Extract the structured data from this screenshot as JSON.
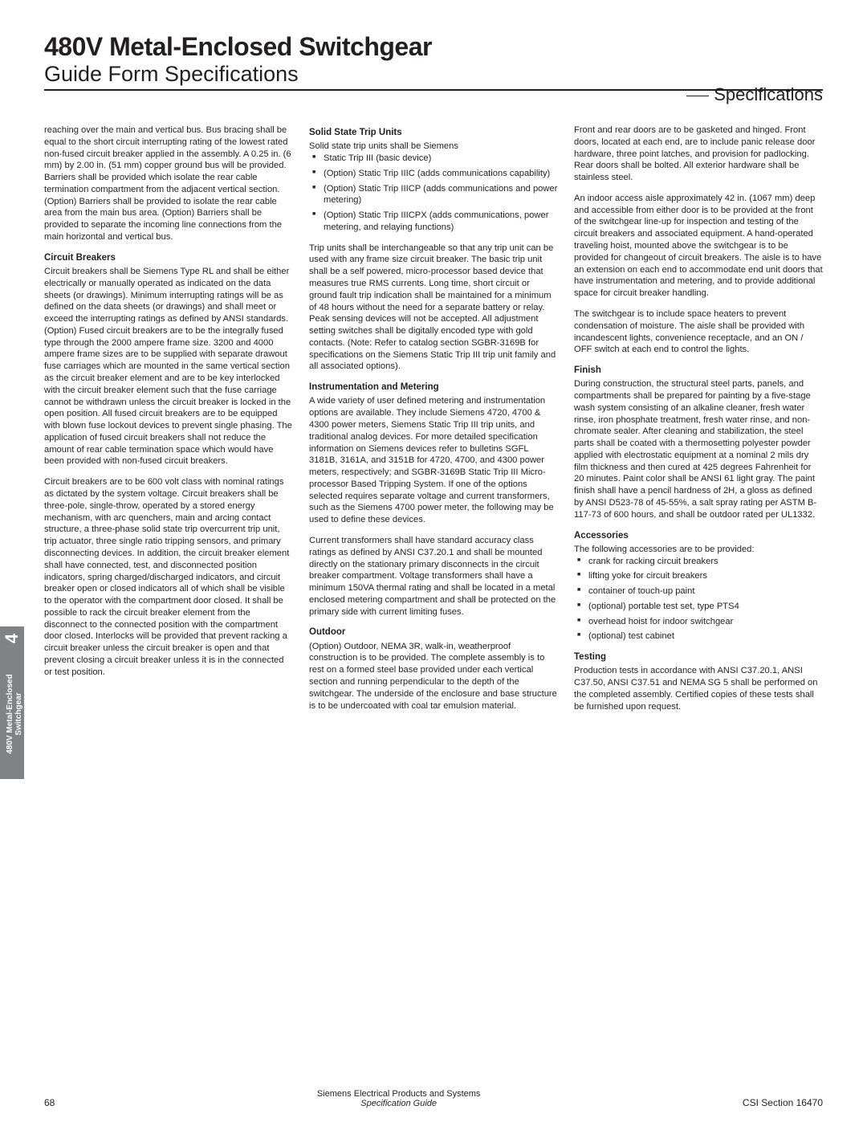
{
  "title": {
    "main": "480V Metal-Enclosed Switchgear",
    "sub": "Guide Form Specifications"
  },
  "sectionLabel": "Specifications",
  "sideTab": {
    "num": "4",
    "line1": "480V Metal-Enclosed",
    "line2": "Switchgear"
  },
  "col1": {
    "p1": "reaching over the main and vertical bus. Bus bracing shall be equal to the short circuit interrupting rating of the lowest rated non-fused circuit breaker applied in the assembly. A 0.25 in. (6 mm) by 2.00 in. (51 mm) copper ground bus will be provided. Barriers shall be provided which isolate the rear cable termination compartment from the adjacent vertical section. (Option) Barriers shall be provided to isolate the rear cable area from the main bus area. (Option) Barriers shall be provided to separate the incoming line connections from the main horizontal and vertical bus.",
    "h1": "Circuit Breakers",
    "p2": "Circuit breakers shall be Siemens Type RL and shall be either electrically or manually operated as indicated on the data sheets (or drawings). Minimum interrupting ratings will be as defined on the data sheets (or drawings) and shall meet or exceed the interrupting ratings as defined by ANSI standards. (Option) Fused circuit breakers are to be the integrally fused type through the 2000 ampere frame size. 3200 and 4000 ampere frame sizes are to be supplied with separate drawout fuse carriages which are mounted in the same vertical section as the circuit breaker element and are to be key interlocked with the circuit breaker element such that the fuse carriage cannot be withdrawn unless the circuit breaker is locked in the open position. All fused circuit breakers are to be equipped with blown fuse lockout devices to prevent single phasing. The application of fused circuit breakers shall not reduce the amount of rear cable termination space which would have been provided with non-fused circuit breakers.",
    "p3": "Circuit breakers are to be 600 volt class with nominal ratings as dictated by the system voltage. Circuit breakers shall be three-pole, single-throw, operated by a stored energy mechanism, with arc quenchers, main and arcing contact structure, a three-phase solid state trip overcurrent trip unit, trip actuator, three single ratio tripping sensors, and primary disconnecting devices. In addition, the circuit breaker element shall have connected, test, and disconnected position indicators, spring charged/discharged indicators, and circuit breaker open or closed indicators all of which shall be visible to the operator with the compartment door closed. It shall be possible to rack the circuit breaker element from the disconnect to the connected position with the compartment door closed. Interlocks will be provided that prevent racking a circuit breaker unless the circuit breaker is open and that prevent closing a circuit breaker unless it is in the connected or test position."
  },
  "col2": {
    "h1": "Solid State Trip Units",
    "p1": "Solid state trip units shall be Siemens",
    "b1": "Static Trip III (basic device)",
    "b2": "(Option) Static Trip IIIC (adds communications capability)",
    "b3": "(Option) Static Trip IIICP (adds communications and power metering)",
    "b4": "(Option) Static Trip IIICPX (adds communications, power metering, and relaying functions)",
    "p2": "Trip units shall be interchangeable so that any trip unit can be used with any frame size circuit breaker. The basic trip unit shall be a self powered, micro-processor based device that measures true RMS currents. Long time, short circuit or ground fault trip indication shall be maintained for a minimum of 48 hours without the need for a separate battery or relay. Peak sensing devices will not be accepted. All adjustment setting switches shall be digitally encoded type with gold contacts. (Note: Refer to catalog section SGBR-3169B for specifications on the Siemens Static Trip III trip unit family and all associated options).",
    "h2": "Instrumentation and Metering",
    "p3": "A wide variety of user defined metering and instrumentation options are available. They include Siemens 4720, 4700 & 4300 power meters, Siemens Static Trip III trip units, and traditional analog devices. For more detailed specification information on Siemens devices refer to bulletins SGFL 3181B, 3161A, and 3151B for 4720, 4700, and 4300 power meters, respectively; and SGBR-3169B Static Trip III Micro-processor Based Tripping System. If one of the options selected requires separate voltage and current transformers, such as the Siemens 4700 power meter, the following may be used to define these devices.",
    "p4": "Current transformers shall have standard accuracy class ratings as defined by ANSI C37.20.1 and shall be mounted directly on the stationary primary disconnects in the circuit breaker compartment. Voltage transformers shall have a minimum 150VA thermal rating and shall be located in a metal enclosed metering compartment and shall be protected on the primary side with current limiting fuses.",
    "h3": "Outdoor",
    "p5": "(Option) Outdoor, NEMA 3R, walk-in, weatherproof construction is to be provided. The complete assembly is to rest on a formed steel base provided under each vertical section and running perpendicular to the depth of the switchgear. The underside of the enclosure and base structure is to be undercoated with coal tar emulsion material."
  },
  "col3": {
    "p1": "Front and rear doors are to be gasketed and hinged. Front doors, located at each end, are to include panic release door hardware, three point latches, and provision for padlocking. Rear doors shall be bolted. All exterior hardware shall be stainless steel.",
    "p2": "An indoor access aisle approximately 42 in. (1067 mm) deep and accessible from either door is to be provided at the front of the switchgear line-up for inspection and testing of the circuit breakers and associated equipment. A hand-operated traveling hoist, mounted above the switchgear is to be provided for changeout of circuit breakers. The aisle is to have an extension on each end to accommodate end unit doors that have instrumentation and metering, and to provide additional space for circuit breaker handling.",
    "p3": "The switchgear is to include space heaters to prevent condensation of moisture. The aisle shall be provided with incandescent lights, convenience receptacle, and an ON / OFF switch at each end to control the lights.",
    "h1": "Finish",
    "p4": "During construction, the structural steel parts, panels, and compartments shall be prepared for painting by a five-stage wash system consisting of an alkaline cleaner, fresh water rinse, iron phosphate treatment, fresh water rinse, and non-chromate sealer. After cleaning and stabilization, the steel parts shall be coated with a thermosetting polyester powder applied with electrostatic equipment at a nominal 2 mils dry film thickness and then cured at 425 degrees Fahrenheit for 20 minutes. Paint color shall be ANSI 61 light gray. The paint finish shall have a pencil hardness of 2H, a gloss as defined by ANSI D523-78 of 45-55%, a salt spray rating per ASTM B-117-73 of 600 hours, and shall be outdoor rated per UL1332.",
    "h2": "Accessories",
    "p5": "The following accessories are to be provided:",
    "b1": "crank for racking circuit breakers",
    "b2": "lifting yoke for circuit breakers",
    "b3": "container of touch-up paint",
    "b4": "(optional) portable test set, type PTS4",
    "b5": "overhead hoist for indoor switchgear",
    "b6": "(optional) test cabinet",
    "h3": "Testing",
    "p6": "Production tests in accordance with ANSI C37.20.1, ANSI C37.50, ANSI C37.51 and NEMA SG 5 shall be performed on the completed assembly. Certified copies of these tests shall be furnished upon request."
  },
  "footer": {
    "page": "68",
    "mid1": "Siemens Electrical Products and Systems",
    "mid2": "Specification Guide",
    "csi": "CSI Section 16470"
  }
}
